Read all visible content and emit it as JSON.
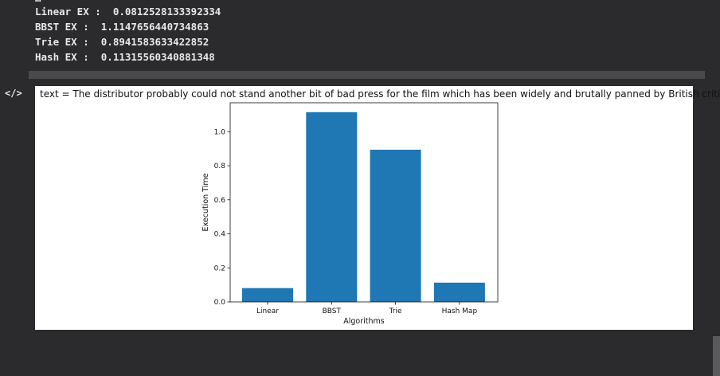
{
  "stdout": {
    "partial_line": "…",
    "lines": [
      "Linear EX :  0.0812528133392334",
      "BBST EX :  1.1147656440734863",
      "Trie EX :  0.8941583633422852",
      "Hash EX :  0.11315560340881348"
    ]
  },
  "cell": {
    "icon": "code-icon",
    "icon_glyph": "</>",
    "output_text": "text = The distributor probably could not stand another bit of bad press for the film which has been widely and brutally panned by British critics"
  },
  "chart_data": {
    "type": "bar",
    "categories": [
      "Linear",
      "BBST",
      "Trie",
      "Hash Map"
    ],
    "values": [
      0.0812528133392334,
      1.1147656440734863,
      0.8941583633422852,
      0.11315560340881348
    ],
    "xlabel": "Algorithms",
    "ylabel": "Execution Time",
    "ylim": [
      0,
      1.17
    ],
    "yticks": [
      0.0,
      0.2,
      0.4,
      0.6,
      0.8,
      1.0
    ],
    "ytick_labels": [
      "0.0",
      "0.2",
      "0.4",
      "0.6",
      "0.8",
      "1.0"
    ],
    "bar_color": "#1f77b4",
    "grid": false
  }
}
